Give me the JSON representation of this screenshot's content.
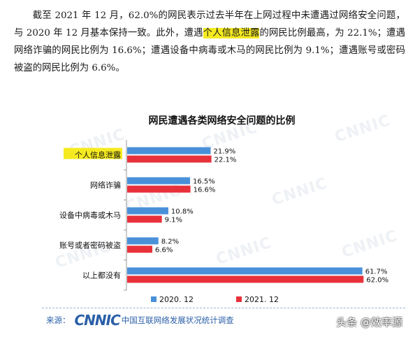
{
  "paragraph": {
    "part1": "截至 2021 年 12 月，62.0%的网民表示过去半年在上网过程中未遭遇过网络安全问题，与 2020 年 12 月基本保持一致。此外，遭遇",
    "highlight": "个人信息泄露",
    "part2": "的网民比例最高，为 22.1%；遭遇网络诈骗的网民比例为 16.6%；遭遇设备中病毒或木马的网民比例为 9.1%；遭遇账号或密码被盗的网民比例为 6.6%。"
  },
  "chart_data": {
    "type": "bar",
    "orientation": "horizontal",
    "title": "网民遭遇各类网络安全问题的比例",
    "categories": [
      "个人信息泄露",
      "网络诈骗",
      "设备中病毒或木马",
      "账号或者密码被盗",
      "以上都没有"
    ],
    "series": [
      {
        "name": "2020. 12",
        "values": [
          21.9,
          16.5,
          10.8,
          8.2,
          61.7
        ],
        "labels": [
          "21.9%",
          "16.5%",
          "10.8%",
          "8.2%",
          "61.7%"
        ],
        "color": "#4a90d9"
      },
      {
        "name": "2021. 12",
        "values": [
          22.1,
          16.6,
          9.1,
          6.6,
          62.0
        ],
        "labels": [
          "22.1%",
          "16.6%",
          "9.1%",
          "6.6%",
          "62.0%"
        ],
        "color": "#e8313a"
      }
    ],
    "xlim": [
      0,
      70
    ],
    "highlight_category": "个人信息泄露",
    "highlight_color": "#f5ea20",
    "legend_position": "bottom",
    "watermark": "CNNIC"
  },
  "source": {
    "label": "来源：",
    "logo": "CNNIC",
    "text": "中国互联网络发展状况统计调查"
  },
  "overlay": {
    "toutiao": "头条 @效率源"
  }
}
